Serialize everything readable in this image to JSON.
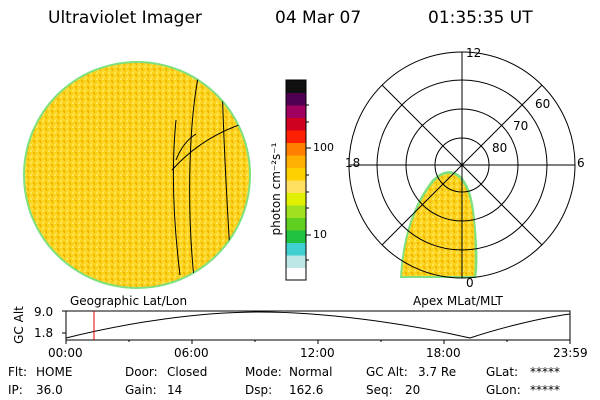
{
  "header": {
    "instrument": "Ultraviolet Imager",
    "date": "04 Mar 07",
    "time": "01:35:35 UT"
  },
  "colorbar": {
    "unit_label": "photon cm⁻²s⁻¹",
    "tick_100": "100",
    "tick_10": "10",
    "colors": [
      "#ffffff",
      "#bfe6e6",
      "#40d0d0",
      "#20c040",
      "#60d020",
      "#a0e020",
      "#e0f000",
      "#ffe060",
      "#ffd000",
      "#ffb000",
      "#ff8000",
      "#ff2000",
      "#d00020",
      "#a00060",
      "#500050",
      "#101010"
    ]
  },
  "left_map": {
    "caption": "Geographic Lat/Lon",
    "fill_color": "#fbd21c"
  },
  "polar_plot": {
    "caption": "Apex MLat/MLT",
    "mlt_labels": [
      "12",
      "18",
      "6",
      "0"
    ],
    "mlat_labels": [
      "60",
      "70",
      "80"
    ]
  },
  "altitude_track": {
    "axis_label": "GC Alt",
    "y_ticks": [
      "9.0",
      "1.8"
    ],
    "x_ticks": [
      "00:00",
      "06:00",
      "12:00",
      "18:00",
      "23:59"
    ]
  },
  "status": {
    "flt_label": "Flt:",
    "flt_value": "HOME",
    "ip_label": "IP:",
    "ip_value": "36.0",
    "door_label": "Door:",
    "door_value": "Closed",
    "gain_label": "Gain:",
    "gain_value": "14",
    "mode_label": "Mode:",
    "mode_value": "Normal",
    "dsp_label": "Dsp:",
    "dsp_value": "162.6",
    "gcalt_label": "GC Alt:",
    "gcalt_value": "3.7 Re",
    "seq_label": "Seq:",
    "seq_value": "20",
    "glat_label": "GLat:",
    "glat_value": "*****",
    "glon_label": "GLon:",
    "glon_value": "*****"
  }
}
